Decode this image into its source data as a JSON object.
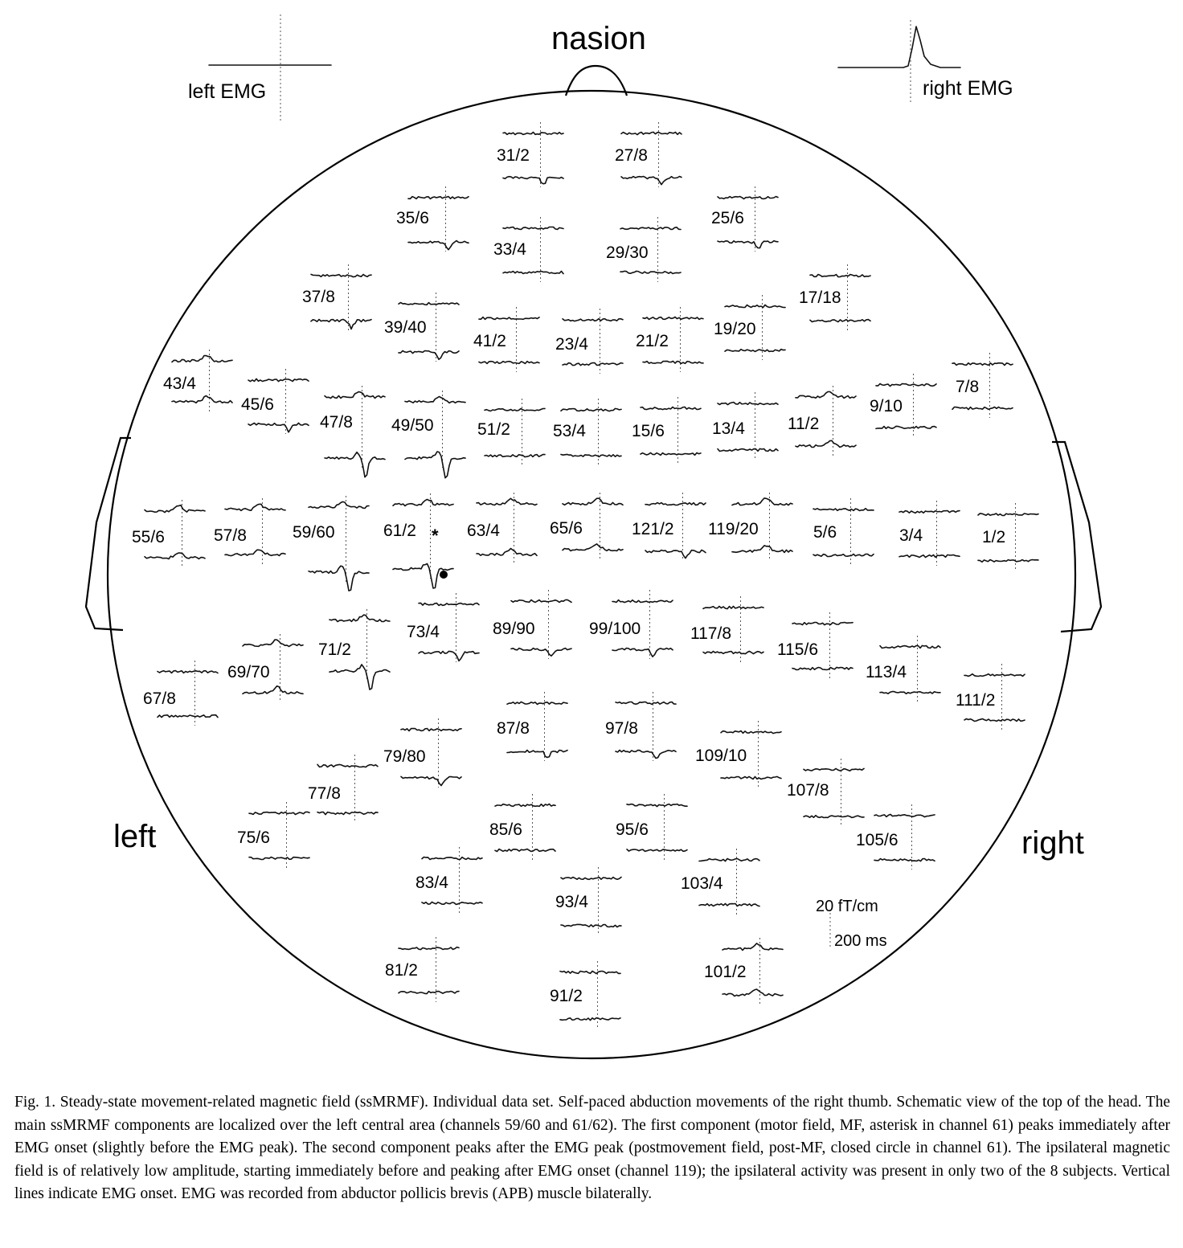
{
  "labels": {
    "nasion": "nasion",
    "left_emg": "left EMG",
    "right_emg": "right EMG",
    "left": "left",
    "right": "right",
    "scale_amp": "20 fT/cm",
    "scale_time": "200 ms"
  },
  "markers": {
    "asterisk": "*"
  },
  "channels": [
    "31/2",
    "27/8",
    "35/6",
    "25/6",
    "33/4",
    "29/30",
    "37/8",
    "17/18",
    "39/40",
    "41/2",
    "23/4",
    "21/2",
    "19/20",
    "43/4",
    "7/8",
    "45/6",
    "9/10",
    "47/8",
    "49/50",
    "51/2",
    "53/4",
    "15/6",
    "13/4",
    "11/2",
    "55/6",
    "57/8",
    "59/60",
    "61/2",
    "63/4",
    "65/6",
    "121/2",
    "119/20",
    "5/6",
    "3/4",
    "1/2",
    "73/4",
    "89/90",
    "99/100",
    "117/8",
    "71/2",
    "115/6",
    "69/70",
    "113/4",
    "67/8",
    "111/2",
    "87/8",
    "97/8",
    "79/80",
    "109/10",
    "77/8",
    "107/8",
    "75/6",
    "85/6",
    "95/6",
    "105/6",
    "83/4",
    "103/4",
    "93/4",
    "81/2",
    "101/2",
    "91/2"
  ],
  "caption": "Fig. 1. Steady-state movement-related magnetic field (ssMRMF). Individual data set. Self-paced abduction movements of the right thumb. Schematic view of the top of the head. The main ssMRMF components are localized over the left central area (channels 59/60 and 61/62). The first component (motor field, MF, asterisk in channel 61) peaks immediately after EMG onset (slightly before the EMG peak). The second component peaks after the EMG peak (postmovement field, post-MF, closed circle in channel 61). The ipsilateral magnetic field is of relatively low amplitude, starting immediately before and peaking after EMG onset (channel 119); the ipsilateral activity was present in only two of the 8 subjects. Vertical lines indicate EMG onset. EMG was recorded from abductor pollicis brevis (APB) muscle bilaterally."
}
